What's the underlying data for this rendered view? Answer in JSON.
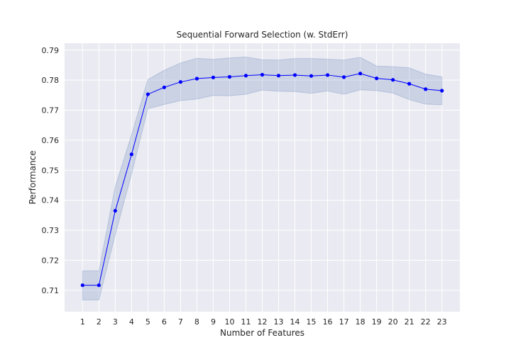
{
  "chart_data": {
    "type": "line",
    "title": "Sequential Forward Selection (w. StdErr)",
    "xlabel": "Number of Features",
    "ylabel": "Performance",
    "x": [
      1,
      2,
      3,
      4,
      5,
      6,
      7,
      8,
      9,
      10,
      11,
      12,
      13,
      14,
      15,
      16,
      17,
      18,
      19,
      20,
      21,
      22,
      23
    ],
    "xlim": [
      -0.1,
      24.1
    ],
    "ylim": [
      0.7029,
      0.7923
    ],
    "yticks": [
      0.71,
      0.72,
      0.73,
      0.74,
      0.75,
      0.76,
      0.77,
      0.78,
      0.79
    ],
    "grid": true,
    "series": [
      {
        "values": [
          0.7117,
          0.7117,
          0.7365,
          0.7553,
          0.7753,
          0.7776,
          0.7794,
          0.7805,
          0.7809,
          0.7811,
          0.7815,
          0.7818,
          0.7815,
          0.7817,
          0.7814,
          0.7817,
          0.781,
          0.7822,
          0.7806,
          0.7801,
          0.7788,
          0.777,
          0.7765
        ],
        "upper": [
          0.7165,
          0.7165,
          0.7445,
          0.7618,
          0.7802,
          0.7833,
          0.7857,
          0.7873,
          0.7869,
          0.7874,
          0.7877,
          0.7868,
          0.7867,
          0.7872,
          0.7872,
          0.787,
          0.7867,
          0.7876,
          0.7847,
          0.7845,
          0.7841,
          0.782,
          0.7811
        ],
        "lower": [
          0.7068,
          0.7068,
          0.7285,
          0.7488,
          0.7705,
          0.7719,
          0.7732,
          0.7737,
          0.7749,
          0.7748,
          0.7753,
          0.7767,
          0.7763,
          0.7762,
          0.7756,
          0.7764,
          0.7753,
          0.7768,
          0.7765,
          0.7757,
          0.7735,
          0.772,
          0.7718
        ]
      }
    ],
    "colors": {
      "line": "#0000ff",
      "band": "#4c72b0",
      "plot_bg": "#eaeaf2",
      "grid": "#ffffff"
    }
  }
}
